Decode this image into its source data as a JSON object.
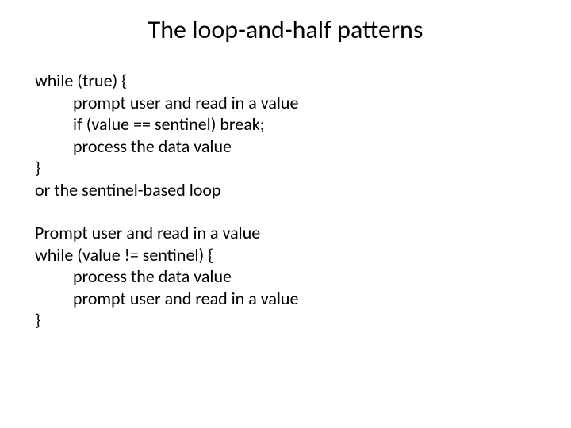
{
  "title": "The loop-and-half patterns",
  "block1": {
    "l1": "while (true) {",
    "l2": "prompt user and read in a value",
    "l3": "if (value == sentinel) break;",
    "l4": "process the data value",
    "l5": "}",
    "l6": "or the sentinel-based loop"
  },
  "block2": {
    "l1": "Prompt user and read in a value",
    "l2": "while (value != sentinel) {",
    "l3": "process the data value",
    "l4": "prompt user and read in a value",
    "l5": "}"
  }
}
